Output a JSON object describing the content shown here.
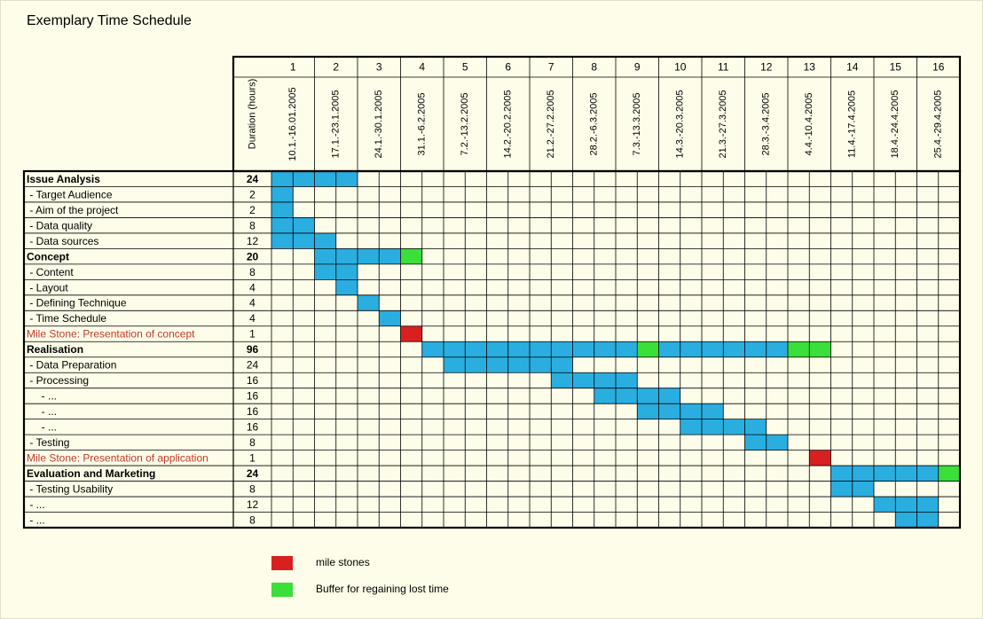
{
  "header": {
    "title": "Exemplary Time Schedule",
    "duration_label": "Duration (hours)"
  },
  "weeks": [
    {
      "number": 1,
      "dates": "10.1.-16.01.2005"
    },
    {
      "number": 2,
      "dates": "17.1.-23.1.2005"
    },
    {
      "number": 3,
      "dates": "24.1.-30.1.2005"
    },
    {
      "number": 4,
      "dates": "31.1.-6.2.2005"
    },
    {
      "number": 5,
      "dates": "7.2.-13.2.2005"
    },
    {
      "number": 6,
      "dates": "14.2.-20.2.2005"
    },
    {
      "number": 7,
      "dates": "21.2.-27.2.2005"
    },
    {
      "number": 8,
      "dates": "28.2.-6.3.2005"
    },
    {
      "number": 9,
      "dates": "7.3.-13.3.2005"
    },
    {
      "number": 10,
      "dates": "14.3.-20.3.2005"
    },
    {
      "number": 11,
      "dates": "21.3.-27.3.2005"
    },
    {
      "number": 12,
      "dates": "28.3.-3.4.2005"
    },
    {
      "number": 13,
      "dates": "4.4.-10.4.2005"
    },
    {
      "number": 14,
      "dates": "11.4.-17.4.2005"
    },
    {
      "number": 15,
      "dates": "18.4.-24.4.2005"
    },
    {
      "number": 16,
      "dates": "25.4.-29.4.2005"
    }
  ],
  "colors": {
    "work": "#2aaee0",
    "buffer": "#3adf3a",
    "milestone": "#d92020"
  },
  "rows": [
    {
      "label": "Issue Analysis",
      "kind": "phase",
      "duration": 24,
      "blocks": [
        {
          "from": 0,
          "to": 3,
          "color": "work"
        }
      ]
    },
    {
      "label": " - Target Audience",
      "kind": "task",
      "duration": 2,
      "blocks": [
        {
          "from": 0,
          "to": 0,
          "color": "work"
        }
      ]
    },
    {
      "label": " - Aim of the project",
      "kind": "task",
      "duration": 2,
      "blocks": [
        {
          "from": 0,
          "to": 0,
          "color": "work"
        }
      ]
    },
    {
      "label": " - Data quality",
      "kind": "task",
      "duration": 8,
      "blocks": [
        {
          "from": 0,
          "to": 1,
          "color": "work"
        }
      ]
    },
    {
      "label": " - Data sources",
      "kind": "task",
      "duration": 12,
      "blocks": [
        {
          "from": 0,
          "to": 2,
          "color": "work"
        }
      ]
    },
    {
      "label": "Concept",
      "kind": "phase",
      "duration": 20,
      "blocks": [
        {
          "from": 2,
          "to": 5,
          "color": "work"
        },
        {
          "from": 6,
          "to": 6,
          "color": "buffer"
        }
      ]
    },
    {
      "label": " - Content",
      "kind": "task",
      "duration": 8,
      "blocks": [
        {
          "from": 2,
          "to": 3,
          "color": "work"
        }
      ]
    },
    {
      "label": " - Layout",
      "kind": "task",
      "duration": 4,
      "blocks": [
        {
          "from": 3,
          "to": 3,
          "color": "work"
        }
      ]
    },
    {
      "label": " - Defining Technique",
      "kind": "task",
      "duration": 4,
      "blocks": [
        {
          "from": 4,
          "to": 4,
          "color": "work"
        }
      ]
    },
    {
      "label": " - Time Schedule",
      "kind": "task",
      "duration": 4,
      "blocks": [
        {
          "from": 5,
          "to": 5,
          "color": "work"
        }
      ]
    },
    {
      "label": "Mile Stone: Presentation of concept",
      "kind": "milestone",
      "duration": 1,
      "blocks": [
        {
          "from": 6,
          "to": 6,
          "color": "milestone"
        }
      ]
    },
    {
      "label": "Realisation",
      "kind": "phase",
      "duration": 96,
      "blocks": [
        {
          "from": 7,
          "to": 16,
          "color": "work"
        },
        {
          "from": 17,
          "to": 17,
          "color": "buffer"
        },
        {
          "from": 18,
          "to": 23,
          "color": "work"
        },
        {
          "from": 24,
          "to": 25,
          "color": "buffer"
        }
      ]
    },
    {
      "label": " - Data Preparation",
      "kind": "task",
      "duration": 24,
      "blocks": [
        {
          "from": 8,
          "to": 13,
          "color": "work"
        }
      ]
    },
    {
      "label": " - Processing",
      "kind": "task",
      "duration": 16,
      "blocks": [
        {
          "from": 13,
          "to": 16,
          "color": "work"
        }
      ]
    },
    {
      "label": "     - ...",
      "kind": "task",
      "duration": 16,
      "blocks": [
        {
          "from": 15,
          "to": 18,
          "color": "work"
        }
      ]
    },
    {
      "label": "     - ...",
      "kind": "task",
      "duration": 16,
      "blocks": [
        {
          "from": 17,
          "to": 20,
          "color": "work"
        }
      ]
    },
    {
      "label": "     - ...",
      "kind": "task",
      "duration": 16,
      "blocks": [
        {
          "from": 19,
          "to": 22,
          "color": "work"
        }
      ]
    },
    {
      "label": " - Testing",
      "kind": "task",
      "duration": 8,
      "blocks": [
        {
          "from": 22,
          "to": 23,
          "color": "work"
        }
      ]
    },
    {
      "label": "Mile Stone: Presentation of application",
      "kind": "milestone",
      "duration": 1,
      "blocks": [
        {
          "from": 25,
          "to": 25,
          "color": "milestone"
        }
      ]
    },
    {
      "label": "Evaluation and Marketing",
      "kind": "phase",
      "duration": 24,
      "blocks": [
        {
          "from": 26,
          "to": 30,
          "color": "work"
        },
        {
          "from": 31,
          "to": 31,
          "color": "buffer"
        }
      ]
    },
    {
      "label": " - Testing Usability",
      "kind": "task",
      "duration": 8,
      "blocks": [
        {
          "from": 26,
          "to": 27,
          "color": "work"
        }
      ]
    },
    {
      "label": " - ...",
      "kind": "task",
      "duration": 12,
      "blocks": [
        {
          "from": 28,
          "to": 30,
          "color": "work"
        }
      ]
    },
    {
      "label": " - ...",
      "kind": "task",
      "duration": 8,
      "blocks": [
        {
          "from": 29,
          "to": 30,
          "color": "work"
        }
      ]
    }
  ],
  "legend": [
    {
      "color": "milestone",
      "label": "mile stones"
    },
    {
      "color": "buffer",
      "label": "Buffer for regaining lost time"
    }
  ]
}
